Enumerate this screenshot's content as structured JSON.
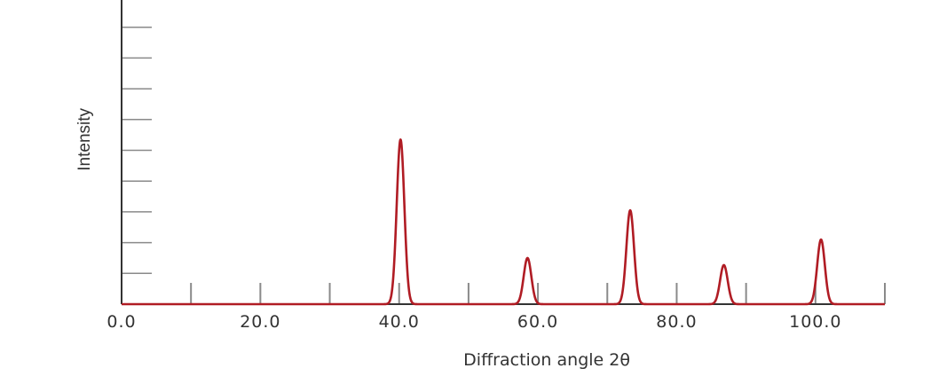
{
  "chart_data": {
    "type": "line",
    "xlabel": "Diffraction angle 2θ",
    "ylabel": "Intensity",
    "xlim": [
      0,
      110
    ],
    "ylim": [
      0,
      10
    ],
    "x_ticks": [
      0,
      10,
      20,
      30,
      40,
      50,
      60,
      70,
      80,
      90,
      100,
      110
    ],
    "x_tick_labels": [
      {
        "value": 0,
        "label": "0.0"
      },
      {
        "value": 20,
        "label": "20.0"
      },
      {
        "value": 40,
        "label": "40.0"
      },
      {
        "value": 60,
        "label": "60.0"
      },
      {
        "value": 80,
        "label": "80.0"
      },
      {
        "value": 100,
        "label": "100.0"
      }
    ],
    "y_ticks": [
      1,
      2,
      3,
      4,
      5,
      6,
      7,
      8,
      9,
      10
    ],
    "grid": false,
    "legend": "none",
    "peaks": [
      {
        "x": 40.2,
        "y": 5.35
      },
      {
        "x": 58.5,
        "y": 1.5
      },
      {
        "x": 73.3,
        "y": 3.05
      },
      {
        "x": 86.8,
        "y": 1.27
      },
      {
        "x": 100.8,
        "y": 2.1
      }
    ],
    "colors": {
      "line": "#b01c24",
      "axis": "#333333",
      "ticks": "#8a8a8a"
    }
  }
}
